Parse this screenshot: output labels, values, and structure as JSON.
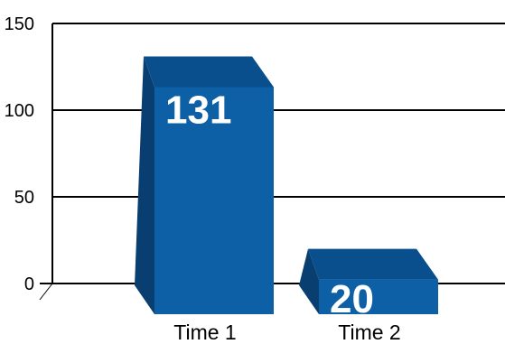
{
  "chart_data": {
    "type": "bar",
    "categories": [
      "Time 1",
      "Time 2"
    ],
    "values": [
      131,
      20
    ],
    "data_labels": [
      "131",
      "20"
    ],
    "ylim": [
      0,
      150
    ],
    "yticks": [
      0,
      50,
      100,
      150
    ],
    "ytick_labels": [
      "0",
      "50",
      "100",
      "150"
    ],
    "grid": true,
    "three_d": true,
    "colors": {
      "front": "#0d5fa6",
      "top": "#0a4f8d",
      "side": "#083e70",
      "grid": "#000000"
    }
  }
}
